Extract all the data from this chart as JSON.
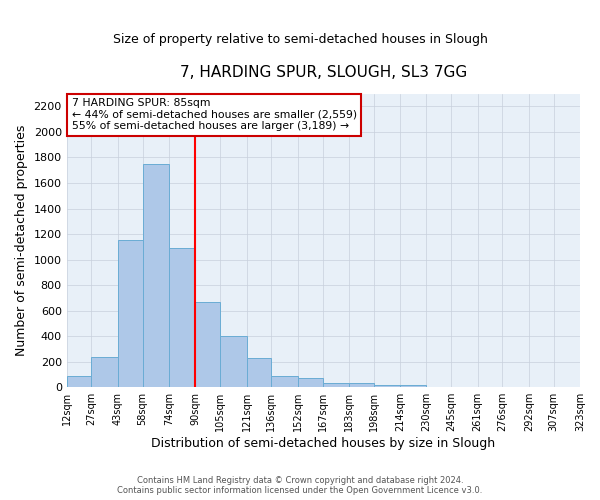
{
  "title": "7, HARDING SPUR, SLOUGH, SL3 7GG",
  "subtitle": "Size of property relative to semi-detached houses in Slough",
  "xlabel": "Distribution of semi-detached houses by size in Slough",
  "ylabel": "Number of semi-detached properties",
  "bin_edges": [
    12,
    27,
    43,
    58,
    74,
    90,
    105,
    121,
    136,
    152,
    167,
    183,
    198,
    214,
    230,
    245,
    261,
    276,
    292,
    307,
    323
  ],
  "bar_heights": [
    90,
    240,
    1150,
    1750,
    1090,
    670,
    400,
    230,
    85,
    75,
    35,
    30,
    20,
    20,
    0,
    0,
    0,
    0,
    0,
    0
  ],
  "bar_color": "#aec8e8",
  "bar_edgecolor": "#6aacd4",
  "red_line_x": 90,
  "annotation_title": "7 HARDING SPUR: 85sqm",
  "annotation_line1": "← 44% of semi-detached houses are smaller (2,559)",
  "annotation_line2": "55% of semi-detached houses are larger (3,189) →",
  "annotation_box_edgecolor": "#cc0000",
  "ylim": [
    0,
    2300
  ],
  "yticks": [
    0,
    200,
    400,
    600,
    800,
    1000,
    1200,
    1400,
    1600,
    1800,
    2000,
    2200
  ],
  "xtick_labels": [
    "12sqm",
    "27sqm",
    "43sqm",
    "58sqm",
    "74sqm",
    "90sqm",
    "105sqm",
    "121sqm",
    "136sqm",
    "152sqm",
    "167sqm",
    "183sqm",
    "198sqm",
    "214sqm",
    "230sqm",
    "245sqm",
    "261sqm",
    "276sqm",
    "292sqm",
    "307sqm",
    "323sqm"
  ],
  "footer1": "Contains HM Land Registry data © Crown copyright and database right 2024.",
  "footer2": "Contains public sector information licensed under the Open Government Licence v3.0.",
  "bg_color": "#ffffff",
  "plot_bg_color": "#e8f0f8",
  "grid_color": "#c8d0dc",
  "figsize": [
    6.0,
    5.0
  ],
  "dpi": 100
}
